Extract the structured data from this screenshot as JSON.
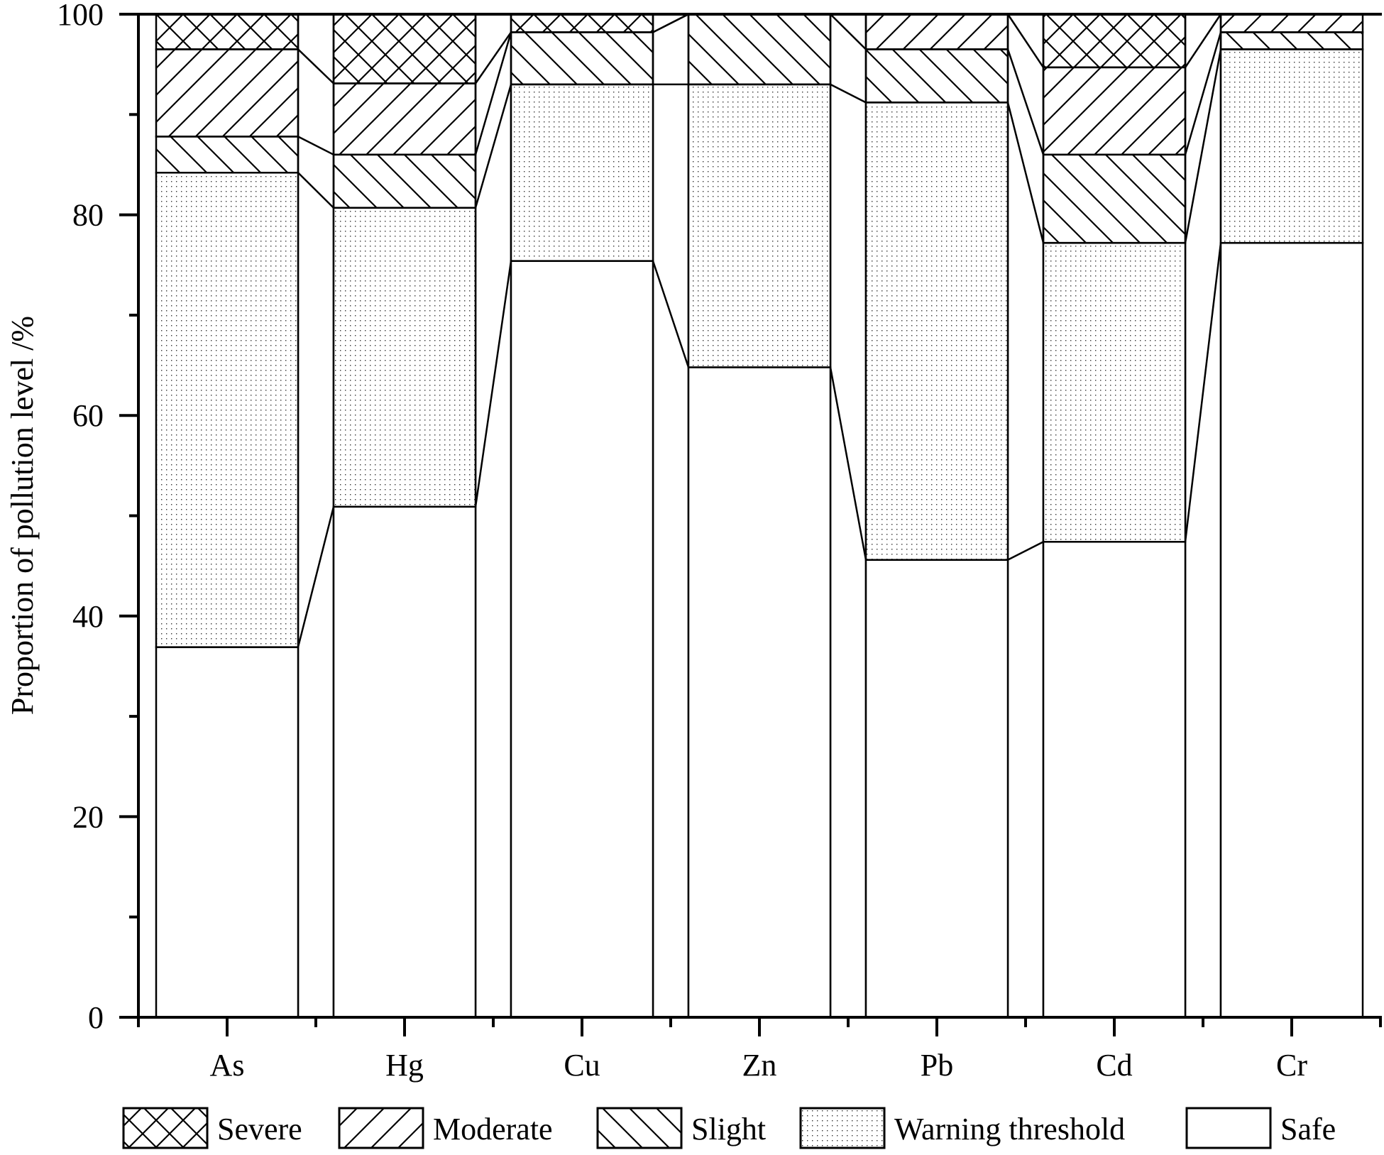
{
  "chart_data": {
    "type": "bar",
    "stacked": true,
    "title": "",
    "xlabel": "",
    "ylabel": "Proportion of pollution level /%",
    "ylim": [
      0,
      100
    ],
    "yticks": [
      0,
      20,
      40,
      60,
      80,
      100
    ],
    "grid": false,
    "legend_position": "bottom",
    "categories": [
      "As",
      "Hg",
      "Cu",
      "Zn",
      "Pb",
      "Cd",
      "Cr"
    ],
    "series": [
      {
        "name": "Safe",
        "pattern": "none",
        "values": [
          36.9,
          50.9,
          75.4,
          64.8,
          45.6,
          47.4,
          77.2
        ]
      },
      {
        "name": "Warning threshold",
        "pattern": "dots",
        "values": [
          47.3,
          29.8,
          17.6,
          28.2,
          45.6,
          29.8,
          19.3
        ]
      },
      {
        "name": "Slight",
        "pattern": "backslash",
        "values": [
          3.6,
          5.3,
          5.2,
          7.0,
          5.3,
          8.8,
          1.7
        ]
      },
      {
        "name": "Moderate",
        "pattern": "slash",
        "values": [
          8.7,
          7.1,
          0.0,
          0.0,
          3.5,
          8.7,
          1.8
        ]
      },
      {
        "name": "Severe",
        "pattern": "crosshatch",
        "values": [
          3.5,
          6.9,
          1.8,
          0.0,
          0.0,
          5.3,
          0.0
        ]
      }
    ],
    "legend_order": [
      "Severe",
      "Moderate",
      "Slight",
      "Warning threshold",
      "Safe"
    ],
    "connector_lines": true
  },
  "colors": {
    "stroke": "#000000",
    "fill": "#ffffff"
  }
}
